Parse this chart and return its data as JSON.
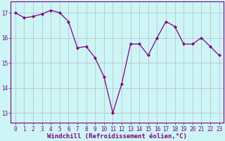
{
  "x": [
    0,
    1,
    2,
    3,
    4,
    5,
    6,
    7,
    8,
    9,
    10,
    11,
    12,
    13,
    14,
    15,
    16,
    17,
    18,
    19,
    20,
    21,
    22,
    23
  ],
  "y": [
    17.0,
    16.8,
    16.85,
    16.95,
    17.1,
    17.0,
    16.65,
    15.6,
    15.65,
    15.2,
    14.45,
    13.0,
    14.15,
    15.75,
    15.75,
    15.3,
    16.0,
    16.65,
    16.45,
    15.75,
    15.75,
    16.0,
    15.65,
    15.3
  ],
  "line_color": "#800080",
  "marker": "D",
  "marker_size": 2.0,
  "background_color": "#cdf5f5",
  "grid_color": "#b0b0c0",
  "xlabel": "Windchill (Refroidissement éolien,°C)",
  "xlabel_fontsize": 6.5,
  "ylabel_ticks": [
    13,
    14,
    15,
    16,
    17
  ],
  "xticks": [
    0,
    1,
    2,
    3,
    4,
    5,
    6,
    7,
    8,
    9,
    10,
    11,
    12,
    13,
    14,
    15,
    16,
    17,
    18,
    19,
    20,
    21,
    22,
    23
  ],
  "ylim": [
    12.6,
    17.45
  ],
  "xlim": [
    -0.5,
    23.5
  ],
  "tick_color": "#800080",
  "tick_fontsize": 5.5,
  "xlabel_color": "#800080",
  "spine_color": "#800080",
  "linewidth": 0.9
}
